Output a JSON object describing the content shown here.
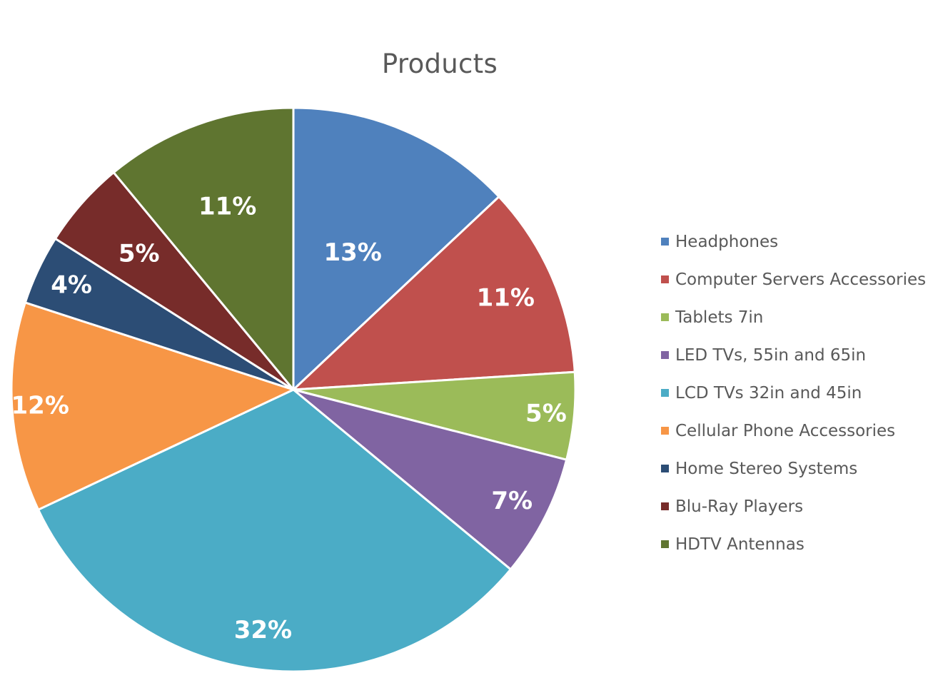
{
  "chart_data": {
    "type": "pie",
    "title": "Products",
    "categories": [
      "Headphones",
      "Computer Servers Accessories",
      "Tablets 7in",
      "LED TVs, 55in and 65in",
      "LCD TVs 32in and 45in",
      "Cellular Phone Accessories",
      "Home Stereo Systems",
      "Blu-Ray Players",
      "HDTV Antennas"
    ],
    "values": [
      13,
      11,
      5,
      7,
      32,
      12,
      4,
      5,
      11
    ],
    "data_labels": [
      "13%",
      "11%",
      "5%",
      "7%",
      "32%",
      "12%",
      "4%",
      "5%",
      "11%"
    ],
    "colors": [
      "#4F81BD",
      "#C0504D",
      "#9BBB59",
      "#8064A2",
      "#4BACC6",
      "#F79646",
      "#2C4D75",
      "#772C2A",
      "#5F7530"
    ],
    "start_angle": "12 o'clock",
    "direction": "clockwise",
    "legend_position": "right"
  }
}
